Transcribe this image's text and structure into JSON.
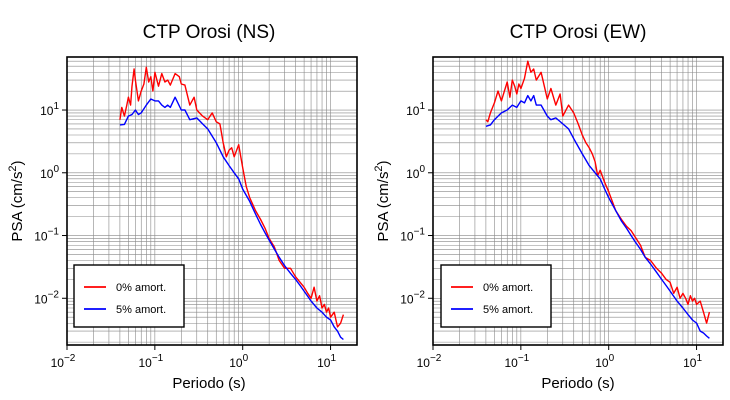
{
  "colors": {
    "undamped": "#ff0000",
    "damped": "#0000ff",
    "grid": "#888888"
  },
  "chart_data": [
    {
      "type": "line",
      "title": "CTP Orosi (NS)",
      "xlabel": "Periodo (s)",
      "ylabel_base": "PSA (cm/s",
      "ylabel_exp": "2",
      "ylabel_end": ")",
      "xscale": "log",
      "yscale": "log",
      "xlim": [
        0.01,
        20
      ],
      "ylim": [
        0.0018,
        70
      ],
      "x_ticks": [
        {
          "base": "10",
          "exp": "−2",
          "value": 0.01
        },
        {
          "base": "10",
          "exp": "−1",
          "value": 0.1
        },
        {
          "base": "10",
          "exp": "0",
          "value": 1
        },
        {
          "base": "10",
          "exp": "1",
          "value": 10
        }
      ],
      "y_ticks": [
        {
          "base": "10",
          "exp": "−2",
          "value": 0.01
        },
        {
          "base": "10",
          "exp": "−1",
          "value": 0.1
        },
        {
          "base": "10",
          "exp": "0",
          "value": 1
        },
        {
          "base": "10",
          "exp": "1",
          "value": 10
        }
      ],
      "grid": true,
      "legend_position": "bottom-left",
      "series": [
        {
          "name": "0% amort.",
          "color": "#ff0000",
          "x": [
            0.04,
            0.042,
            0.045,
            0.048,
            0.05,
            0.053,
            0.055,
            0.058,
            0.06,
            0.065,
            0.07,
            0.075,
            0.08,
            0.085,
            0.09,
            0.095,
            0.1,
            0.11,
            0.12,
            0.13,
            0.14,
            0.15,
            0.17,
            0.19,
            0.2,
            0.22,
            0.25,
            0.28,
            0.3,
            0.35,
            0.4,
            0.45,
            0.5,
            0.55,
            0.6,
            0.65,
            0.7,
            0.75,
            0.8,
            0.9,
            1.0,
            1.1,
            1.2,
            1.4,
            1.6,
            1.8,
            2.0,
            2.3,
            2.6,
            3.0,
            3.5,
            4.0,
            4.5,
            5.0,
            5.5,
            6.0,
            6.5,
            7.0,
            7.5,
            8.0,
            8.5,
            9.0,
            9.5,
            10.0,
            11.0,
            12.0,
            13.0,
            14.0
          ],
          "y": [
            7,
            11,
            8,
            12,
            16,
            12,
            24,
            45,
            30,
            14,
            20,
            26,
            48,
            28,
            34,
            20,
            40,
            24,
            38,
            28,
            30,
            25,
            38,
            34,
            26,
            25,
            12,
            16,
            10,
            8,
            7,
            9,
            6.5,
            6,
            3,
            1.8,
            2.3,
            2.5,
            1.8,
            2.8,
            1.2,
            0.6,
            0.4,
            0.25,
            0.18,
            0.13,
            0.09,
            0.065,
            0.04,
            0.03,
            0.03,
            0.022,
            0.018,
            0.015,
            0.012,
            0.01,
            0.015,
            0.009,
            0.011,
            0.007,
            0.008,
            0.006,
            0.007,
            0.005,
            0.006,
            0.0035,
            0.004,
            0.0055
          ]
        },
        {
          "name": "5% amort.",
          "color": "#0000ff",
          "x": [
            0.04,
            0.045,
            0.05,
            0.055,
            0.06,
            0.065,
            0.07,
            0.08,
            0.09,
            0.1,
            0.11,
            0.12,
            0.13,
            0.14,
            0.15,
            0.17,
            0.2,
            0.22,
            0.25,
            0.3,
            0.35,
            0.4,
            0.5,
            0.6,
            0.7,
            0.8,
            0.9,
            1.0,
            1.2,
            1.4,
            1.6,
            1.8,
            2.0,
            2.3,
            2.6,
            3.0,
            3.5,
            4.0,
            4.5,
            5.0,
            6.0,
            7.0,
            8.0,
            9.0,
            10.0,
            11.0,
            12.0,
            13.0,
            14.0
          ],
          "y": [
            5.8,
            5.9,
            8,
            8.5,
            10,
            8.5,
            9,
            12,
            15,
            14,
            14,
            12,
            11,
            12,
            11,
            16,
            10,
            10,
            7,
            7.5,
            6,
            5,
            3,
            1.8,
            1.3,
            1.0,
            0.8,
            0.55,
            0.35,
            0.22,
            0.15,
            0.11,
            0.085,
            0.06,
            0.045,
            0.033,
            0.025,
            0.02,
            0.016,
            0.013,
            0.009,
            0.007,
            0.006,
            0.005,
            0.0045,
            0.0035,
            0.003,
            0.0024,
            0.0022
          ]
        }
      ]
    },
    {
      "type": "line",
      "title": "CTP Orosi (EW)",
      "xlabel": "Periodo (s)",
      "ylabel_base": "PSA (cm/s",
      "ylabel_exp": "2",
      "ylabel_end": ")",
      "xscale": "log",
      "yscale": "log",
      "xlim": [
        0.01,
        20
      ],
      "ylim": [
        0.0018,
        70
      ],
      "x_ticks": [
        {
          "base": "10",
          "exp": "−2",
          "value": 0.01
        },
        {
          "base": "10",
          "exp": "−1",
          "value": 0.1
        },
        {
          "base": "10",
          "exp": "0",
          "value": 1
        },
        {
          "base": "10",
          "exp": "1",
          "value": 10
        }
      ],
      "y_ticks": [
        {
          "base": "10",
          "exp": "−2",
          "value": 0.01
        },
        {
          "base": "10",
          "exp": "−1",
          "value": 0.1
        },
        {
          "base": "10",
          "exp": "0",
          "value": 1
        },
        {
          "base": "10",
          "exp": "1",
          "value": 10
        }
      ],
      "grid": true,
      "legend_position": "bottom-left",
      "series": [
        {
          "name": "0% amort.",
          "color": "#ff0000",
          "x": [
            0.04,
            0.042,
            0.045,
            0.05,
            0.055,
            0.06,
            0.065,
            0.07,
            0.075,
            0.08,
            0.085,
            0.09,
            0.095,
            0.1,
            0.11,
            0.12,
            0.13,
            0.14,
            0.15,
            0.17,
            0.2,
            0.22,
            0.25,
            0.28,
            0.3,
            0.35,
            0.4,
            0.45,
            0.5,
            0.55,
            0.6,
            0.65,
            0.7,
            0.75,
            0.8,
            0.9,
            1.0,
            1.1,
            1.2,
            1.4,
            1.6,
            1.8,
            2.0,
            2.3,
            2.6,
            3.0,
            3.5,
            4.0,
            4.5,
            5.0,
            5.5,
            6.0,
            6.5,
            7.0,
            7.5,
            8.0,
            8.5,
            9.0,
            9.5,
            10.0,
            11.0,
            12.0,
            13.0,
            14.0
          ],
          "y": [
            7,
            6.5,
            9,
            13,
            20,
            14,
            20,
            28,
            16,
            30,
            24,
            18,
            26,
            22,
            32,
            60,
            40,
            45,
            30,
            40,
            15,
            22,
            12,
            18,
            8,
            12,
            9,
            6,
            4,
            3,
            2.5,
            2,
            1.5,
            0.9,
            1.1,
            0.7,
            0.5,
            0.35,
            0.25,
            0.18,
            0.14,
            0.12,
            0.095,
            0.07,
            0.045,
            0.04,
            0.03,
            0.025,
            0.02,
            0.018,
            0.012,
            0.015,
            0.01,
            0.012,
            0.01,
            0.008,
            0.011,
            0.009,
            0.01,
            0.008,
            0.009,
            0.006,
            0.004,
            0.006
          ]
        },
        {
          "name": "5% amort.",
          "color": "#0000ff",
          "x": [
            0.04,
            0.045,
            0.05,
            0.06,
            0.07,
            0.08,
            0.09,
            0.1,
            0.11,
            0.12,
            0.13,
            0.14,
            0.15,
            0.17,
            0.2,
            0.22,
            0.25,
            0.3,
            0.35,
            0.4,
            0.5,
            0.6,
            0.7,
            0.8,
            0.9,
            1.0,
            1.2,
            1.4,
            1.6,
            1.8,
            2.0,
            2.3,
            2.6,
            3.0,
            3.5,
            4.0,
            4.5,
            5.0,
            6.0,
            7.0,
            8.0,
            9.0,
            10.0,
            11.0,
            12.0,
            13.0,
            14.0
          ],
          "y": [
            5.5,
            5.8,
            7,
            9,
            10,
            12,
            11,
            14,
            13,
            17,
            14,
            17,
            12,
            12,
            8,
            7,
            7.5,
            6,
            5,
            3.5,
            2,
            1.3,
            1.0,
            0.8,
            0.55,
            0.4,
            0.25,
            0.17,
            0.13,
            0.1,
            0.08,
            0.06,
            0.045,
            0.035,
            0.026,
            0.02,
            0.016,
            0.013,
            0.009,
            0.007,
            0.0055,
            0.0045,
            0.004,
            0.003,
            0.0028,
            0.0025,
            0.0023
          ]
        }
      ]
    }
  ]
}
